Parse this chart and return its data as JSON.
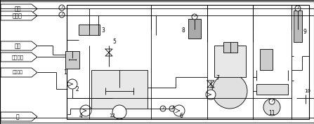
{
  "bg_color": "#ffffff",
  "border_color": "#000000",
  "line_color": "#333333",
  "fig_width": 4.47,
  "fig_height": 1.77,
  "dpi": 100,
  "labels": {
    "steam": "蒸汽",
    "coolant": "冷却水",
    "acid": "硫酸",
    "alumina": "氢氧化铝",
    "air": "压缩空气",
    "water": "水"
  }
}
